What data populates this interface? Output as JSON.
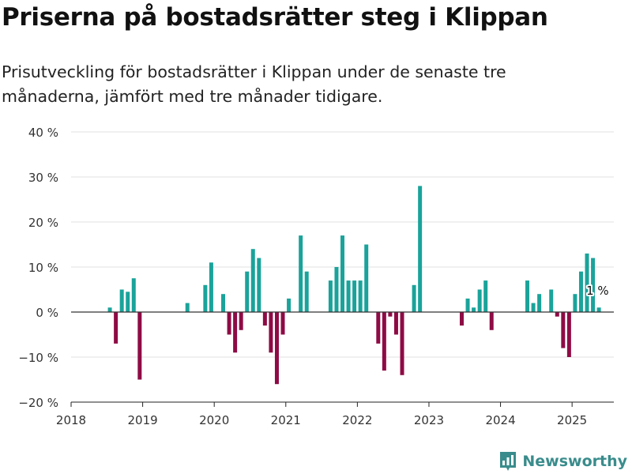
{
  "title": "Priserna på bostadsrätter steg i Klippan",
  "subtitle": "Prisutveckling för bostadsrätter i Klippan under de senaste tre månaderna, jämfört med tre månader tidigare.",
  "brand": "Newsworthy",
  "colors": {
    "positive": "#1aa39a",
    "negative": "#8e0b45",
    "brand": "#3a8c8c"
  },
  "chart_data": {
    "type": "bar",
    "title": "Priserna på bostadsrätter steg i Klippan",
    "xlabel": "",
    "ylabel": "",
    "ylim": [
      -20,
      40
    ],
    "yticks": [
      -20,
      -10,
      0,
      10,
      20,
      30,
      40
    ],
    "ytick_labels": [
      "−20 %",
      "−10 %",
      "0 %",
      "10 %",
      "20 %",
      "30 %",
      "40 %"
    ],
    "xlim": [
      "2018-01",
      "2025-08"
    ],
    "xtick_labels": [
      "2018",
      "2019",
      "2020",
      "2021",
      "2022",
      "2023",
      "2024",
      "2025"
    ],
    "grid": true,
    "annotation": {
      "label": "1 %",
      "month": "2025-05"
    },
    "bars": [
      [
        "2018-07",
        1
      ],
      [
        "2018-08",
        -7
      ],
      [
        "2018-09",
        5
      ],
      [
        "2018-10",
        4.5
      ],
      [
        "2018-11",
        7.5
      ],
      [
        "2018-12",
        -15
      ],
      [
        "2019-08",
        2
      ],
      [
        "2019-11",
        6
      ],
      [
        "2019-12",
        11
      ],
      [
        "2020-02",
        4
      ],
      [
        "2020-03",
        -5
      ],
      [
        "2020-04",
        -9
      ],
      [
        "2020-05",
        -4
      ],
      [
        "2020-06",
        9
      ],
      [
        "2020-07",
        14
      ],
      [
        "2020-08",
        12
      ],
      [
        "2020-09",
        -3
      ],
      [
        "2020-10",
        -9
      ],
      [
        "2020-11",
        -16
      ],
      [
        "2020-12",
        -5
      ],
      [
        "2021-01",
        3
      ],
      [
        "2021-03",
        17
      ],
      [
        "2021-04",
        9
      ],
      [
        "2021-08",
        7
      ],
      [
        "2021-09",
        10
      ],
      [
        "2021-10",
        17
      ],
      [
        "2021-11",
        7
      ],
      [
        "2021-12",
        7
      ],
      [
        "2022-01",
        7
      ],
      [
        "2022-02",
        15
      ],
      [
        "2022-04",
        -7
      ],
      [
        "2022-05",
        -13
      ],
      [
        "2022-06",
        -1
      ],
      [
        "2022-07",
        -5
      ],
      [
        "2022-08",
        -14
      ],
      [
        "2022-10",
        6
      ],
      [
        "2022-11",
        28
      ],
      [
        "2023-06",
        -3
      ],
      [
        "2023-07",
        3
      ],
      [
        "2023-08",
        1
      ],
      [
        "2023-09",
        5
      ],
      [
        "2023-10",
        7
      ],
      [
        "2023-11",
        -4
      ],
      [
        "2024-05",
        7
      ],
      [
        "2024-06",
        2
      ],
      [
        "2024-07",
        4
      ],
      [
        "2024-09",
        5
      ],
      [
        "2024-10",
        -1
      ],
      [
        "2024-11",
        -8
      ],
      [
        "2024-12",
        -10
      ],
      [
        "2025-01",
        4
      ],
      [
        "2025-02",
        9
      ],
      [
        "2025-03",
        13
      ],
      [
        "2025-04",
        12
      ],
      [
        "2025-05",
        1
      ]
    ]
  }
}
